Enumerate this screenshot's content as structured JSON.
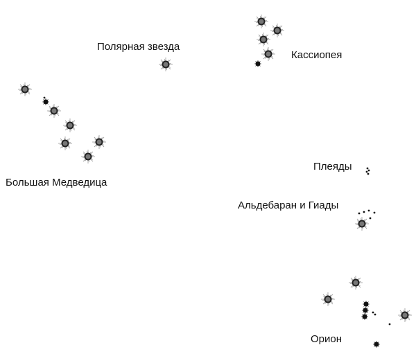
{
  "labels": {
    "polaris": "Полярная звезда",
    "cassiopeia": "Кассиопея",
    "big_dipper": "Большая Медведица",
    "pleiades": "Плеяды",
    "hyades": "Альдебаран и Гиады",
    "orion": "Орион"
  },
  "colors": {
    "bright_star_fill": "#777777",
    "bright_star_rim": "#222222",
    "star_dark": "#111111",
    "halo": "#999999"
  }
}
